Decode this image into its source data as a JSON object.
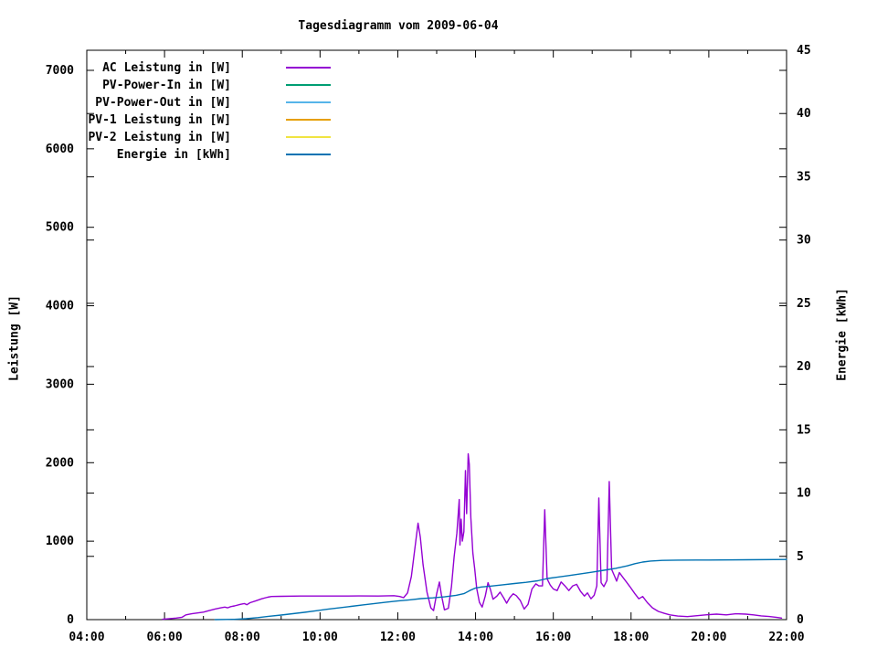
{
  "window": {
    "background": "#ffffff"
  },
  "chart_data": {
    "type": "line",
    "title": "Tagesdiagramm vom 2009-06-04",
    "grid": false,
    "legend_position": "top-left-inside",
    "x_axis": {
      "min_hour": 4,
      "max_hour": 22,
      "major_step_hours": 2,
      "minor_step_hours": 1,
      "tick_hours": [
        4,
        6,
        8,
        10,
        12,
        14,
        16,
        18,
        20,
        22
      ],
      "tick_labels": [
        "04:00",
        "06:00",
        "08:00",
        "10:00",
        "12:00",
        "14:00",
        "16:00",
        "18:00",
        "20:00",
        "22:00"
      ]
    },
    "y_left_axis": {
      "label": "Leistung [W]",
      "min": 0,
      "max_display": 7256,
      "tick_values": [
        0,
        1000,
        2000,
        3000,
        4000,
        5000,
        6000,
        7000
      ],
      "tick_labels": [
        "0",
        "1000",
        "2000",
        "3000",
        "4000",
        "5000",
        "6000",
        "7000"
      ]
    },
    "y_right_axis": {
      "label": "Energie [kWh]",
      "min": 0,
      "max": 45,
      "tick_values": [
        0,
        5,
        10,
        15,
        20,
        25,
        30,
        35,
        40,
        45
      ],
      "tick_labels": [
        "0",
        "5",
        "10",
        "15",
        "20",
        "25",
        "30",
        "35",
        "40",
        "45"
      ]
    },
    "legend": [
      {
        "label": "AC Leistung in [W]",
        "color": "#9400d3"
      },
      {
        "label": "PV-Power-In in [W]",
        "color": "#009e73"
      },
      {
        "label": "PV-Power-Out in [W]",
        "color": "#56b4e9"
      },
      {
        "label": "PV-1 Leistung in [W]",
        "color": "#e69f00"
      },
      {
        "label": "PV-2 Leistung in [W]",
        "color": "#f0e442"
      },
      {
        "label": "Energie in [kWh]",
        "color": "#0072b2"
      }
    ],
    "series_without_visible_data": [
      "PV-Power-In in [W]",
      "PV-Power-Out in [W]",
      "PV-1 Leistung in [W]",
      "PV-2 Leistung in [W]"
    ],
    "series": [
      {
        "name": "AC Leistung in [W]",
        "axis": "left",
        "unit": "W",
        "color": "#9400d3",
        "points": [
          [
            5.95,
            5
          ],
          [
            6.1,
            10
          ],
          [
            6.3,
            20
          ],
          [
            6.45,
            30
          ],
          [
            6.55,
            60
          ],
          [
            6.7,
            75
          ],
          [
            6.85,
            85
          ],
          [
            7.0,
            95
          ],
          [
            7.15,
            115
          ],
          [
            7.3,
            135
          ],
          [
            7.45,
            150
          ],
          [
            7.55,
            160
          ],
          [
            7.62,
            150
          ],
          [
            7.7,
            165
          ],
          [
            7.8,
            175
          ],
          [
            7.95,
            195
          ],
          [
            8.05,
            205
          ],
          [
            8.12,
            190
          ],
          [
            8.2,
            215
          ],
          [
            8.35,
            240
          ],
          [
            8.5,
            265
          ],
          [
            8.65,
            285
          ],
          [
            8.75,
            295
          ],
          [
            9.0,
            297
          ],
          [
            9.5,
            300
          ],
          [
            10.0,
            300
          ],
          [
            10.5,
            300
          ],
          [
            11.0,
            302
          ],
          [
            11.5,
            300
          ],
          [
            11.9,
            305
          ],
          [
            12.05,
            295
          ],
          [
            12.15,
            280
          ],
          [
            12.25,
            340
          ],
          [
            12.35,
            550
          ],
          [
            12.45,
            950
          ],
          [
            12.52,
            1230
          ],
          [
            12.58,
            1050
          ],
          [
            12.65,
            700
          ],
          [
            12.75,
            350
          ],
          [
            12.85,
            150
          ],
          [
            12.92,
            115
          ],
          [
            13.0,
            330
          ],
          [
            13.07,
            480
          ],
          [
            13.12,
            320
          ],
          [
            13.2,
            125
          ],
          [
            13.3,
            145
          ],
          [
            13.38,
            420
          ],
          [
            13.45,
            800
          ],
          [
            13.52,
            1100
          ],
          [
            13.58,
            1530
          ],
          [
            13.6,
            950
          ],
          [
            13.63,
            1280
          ],
          [
            13.66,
            1000
          ],
          [
            13.7,
            1120
          ],
          [
            13.74,
            1900
          ],
          [
            13.77,
            1350
          ],
          [
            13.81,
            2113
          ],
          [
            13.84,
            1980
          ],
          [
            13.88,
            1300
          ],
          [
            13.93,
            850
          ],
          [
            13.98,
            640
          ],
          [
            14.03,
            400
          ],
          [
            14.1,
            220
          ],
          [
            14.17,
            160
          ],
          [
            14.25,
            300
          ],
          [
            14.32,
            470
          ],
          [
            14.38,
            390
          ],
          [
            14.45,
            260
          ],
          [
            14.55,
            300
          ],
          [
            14.63,
            350
          ],
          [
            14.72,
            280
          ],
          [
            14.8,
            210
          ],
          [
            14.88,
            280
          ],
          [
            14.97,
            330
          ],
          [
            15.05,
            305
          ],
          [
            15.15,
            245
          ],
          [
            15.25,
            135
          ],
          [
            15.35,
            195
          ],
          [
            15.45,
            390
          ],
          [
            15.55,
            455
          ],
          [
            15.63,
            430
          ],
          [
            15.72,
            430
          ],
          [
            15.78,
            1400
          ],
          [
            15.84,
            520
          ],
          [
            15.92,
            440
          ],
          [
            16.0,
            390
          ],
          [
            16.1,
            370
          ],
          [
            16.2,
            480
          ],
          [
            16.3,
            430
          ],
          [
            16.4,
            370
          ],
          [
            16.5,
            430
          ],
          [
            16.6,
            450
          ],
          [
            16.7,
            360
          ],
          [
            16.8,
            300
          ],
          [
            16.88,
            340
          ],
          [
            16.97,
            265
          ],
          [
            17.05,
            310
          ],
          [
            17.12,
            430
          ],
          [
            17.17,
            1550
          ],
          [
            17.23,
            470
          ],
          [
            17.3,
            420
          ],
          [
            17.38,
            500
          ],
          [
            17.44,
            1760
          ],
          [
            17.5,
            640
          ],
          [
            17.57,
            560
          ],
          [
            17.63,
            490
          ],
          [
            17.7,
            600
          ],
          [
            17.78,
            545
          ],
          [
            17.88,
            480
          ],
          [
            17.97,
            420
          ],
          [
            18.1,
            330
          ],
          [
            18.2,
            265
          ],
          [
            18.3,
            295
          ],
          [
            18.42,
            215
          ],
          [
            18.55,
            150
          ],
          [
            18.7,
            105
          ],
          [
            18.85,
            80
          ],
          [
            19.0,
            60
          ],
          [
            19.2,
            45
          ],
          [
            19.45,
            38
          ],
          [
            19.7,
            50
          ],
          [
            19.95,
            62
          ],
          [
            20.2,
            70
          ],
          [
            20.45,
            60
          ],
          [
            20.7,
            75
          ],
          [
            20.95,
            70
          ],
          [
            21.15,
            60
          ],
          [
            21.35,
            48
          ],
          [
            21.55,
            40
          ],
          [
            21.75,
            28
          ],
          [
            21.87,
            20
          ]
        ]
      },
      {
        "name": "Energie in [kWh]",
        "axis": "right",
        "unit": "kWh",
        "color": "#0072b2",
        "points": [
          [
            7.3,
            0
          ],
          [
            7.8,
            0.02
          ],
          [
            8.1,
            0.07
          ],
          [
            8.4,
            0.16
          ],
          [
            8.7,
            0.27
          ],
          [
            9.0,
            0.36
          ],
          [
            9.3,
            0.47
          ],
          [
            9.6,
            0.58
          ],
          [
            9.9,
            0.7
          ],
          [
            10.2,
            0.82
          ],
          [
            10.5,
            0.93
          ],
          [
            10.8,
            1.05
          ],
          [
            11.1,
            1.16
          ],
          [
            11.4,
            1.27
          ],
          [
            11.7,
            1.38
          ],
          [
            12.0,
            1.47
          ],
          [
            12.3,
            1.56
          ],
          [
            12.6,
            1.66
          ],
          [
            12.9,
            1.72
          ],
          [
            13.2,
            1.8
          ],
          [
            13.5,
            1.92
          ],
          [
            13.7,
            2.05
          ],
          [
            13.85,
            2.3
          ],
          [
            14.0,
            2.5
          ],
          [
            14.15,
            2.58
          ],
          [
            14.4,
            2.65
          ],
          [
            14.7,
            2.75
          ],
          [
            15.0,
            2.85
          ],
          [
            15.3,
            2.95
          ],
          [
            15.6,
            3.07
          ],
          [
            15.85,
            3.25
          ],
          [
            16.1,
            3.35
          ],
          [
            16.4,
            3.48
          ],
          [
            16.7,
            3.62
          ],
          [
            17.0,
            3.75
          ],
          [
            17.3,
            3.9
          ],
          [
            17.6,
            4.05
          ],
          [
            17.9,
            4.25
          ],
          [
            18.1,
            4.42
          ],
          [
            18.3,
            4.55
          ],
          [
            18.5,
            4.63
          ],
          [
            18.8,
            4.68
          ],
          [
            19.2,
            4.7
          ],
          [
            20.0,
            4.71
          ],
          [
            21.0,
            4.73
          ],
          [
            22.0,
            4.75
          ]
        ]
      }
    ]
  }
}
